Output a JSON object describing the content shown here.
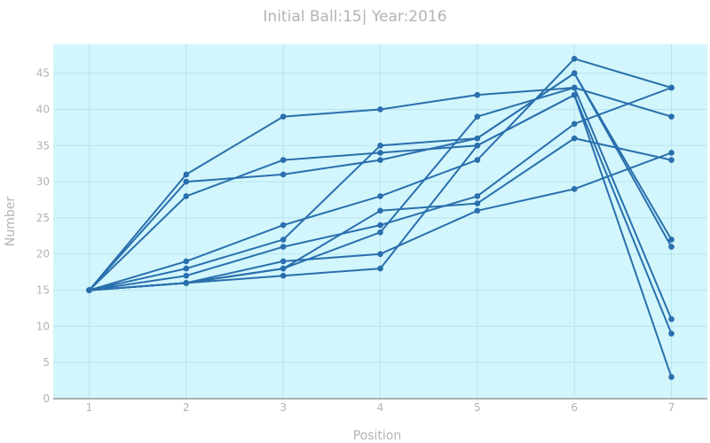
{
  "chart_data": {
    "type": "line",
    "title": "Initial Ball:15| Year:2016",
    "xlabel": "Position",
    "ylabel": "Number",
    "x": [
      1,
      2,
      3,
      4,
      5,
      6,
      7
    ],
    "xlim": [
      0.63,
      7.37
    ],
    "ylim": [
      0,
      49
    ],
    "xticks": [
      1,
      2,
      3,
      4,
      5,
      6,
      7
    ],
    "yticks": [
      0,
      5,
      10,
      15,
      20,
      25,
      30,
      35,
      40,
      45
    ],
    "grid": true,
    "legend": "none",
    "series": [
      {
        "values": [
          15,
          31,
          39,
          40,
          42,
          43,
          39
        ]
      },
      {
        "values": [
          15,
          30,
          31,
          33,
          36,
          45,
          22
        ]
      },
      {
        "values": [
          15,
          28,
          33,
          34,
          35,
          42,
          3
        ]
      },
      {
        "values": [
          15,
          19,
          24,
          28,
          33,
          47,
          43
        ]
      },
      {
        "values": [
          15,
          18,
          22,
          35,
          36,
          45,
          21
        ]
      },
      {
        "values": [
          15,
          17,
          21,
          24,
          28,
          38,
          43
        ]
      },
      {
        "values": [
          15,
          16,
          19,
          20,
          26,
          29,
          34
        ]
      },
      {
        "values": [
          15,
          16,
          18,
          26,
          27,
          36,
          33
        ]
      },
      {
        "values": [
          15,
          16,
          18,
          23,
          39,
          43,
          11
        ]
      },
      {
        "values": [
          15,
          16,
          17,
          18,
          35,
          42,
          9
        ]
      }
    ]
  },
  "colors": {
    "line": "#2a6fad",
    "plot_background": "#d2f6fc",
    "grid": "#b7e4ee",
    "zero_line": "#9a9a9a",
    "text": "#b3b3b3"
  }
}
